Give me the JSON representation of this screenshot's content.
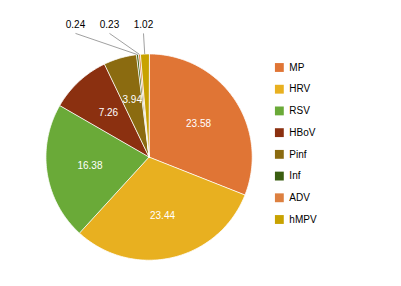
{
  "chart_data": {
    "type": "pie",
    "categories": [
      "MP",
      "HRV",
      "RSV",
      "HBoV",
      "Pinf",
      "Inf",
      "ADV",
      "hMPV"
    ],
    "values": [
      23.58,
      23.44,
      16.38,
      7.26,
      3.94,
      0.24,
      0.23,
      1.02
    ],
    "colors": [
      "#E07535",
      "#E8B020",
      "#6AAA38",
      "#8B3010",
      "#8B6B10",
      "#3A5E10",
      "#DD8040",
      "#C8A200"
    ],
    "data_labels": true,
    "legend": "right"
  }
}
